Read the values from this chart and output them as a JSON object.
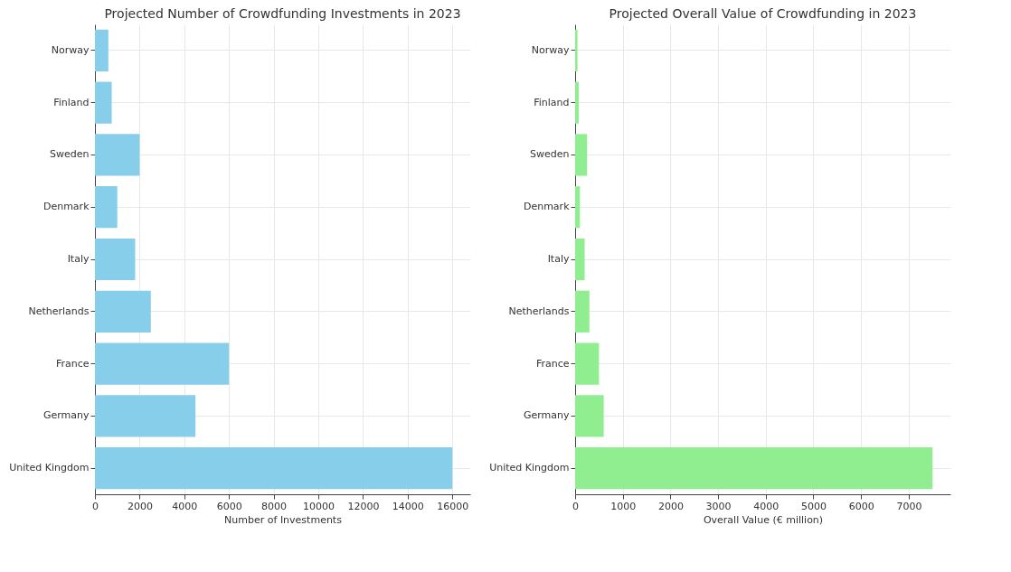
{
  "chart_data": [
    {
      "type": "bar",
      "orientation": "horizontal",
      "title": "Projected Number of Crowdfunding Investments in 2023",
      "xlabel": "Number of Investments",
      "categories": [
        "Norway",
        "Finland",
        "Sweden",
        "Denmark",
        "Italy",
        "Netherlands",
        "France",
        "Germany",
        "United Kingdom"
      ],
      "values": [
        600,
        750,
        2000,
        1000,
        1800,
        2500,
        6000,
        4500,
        16000
      ],
      "color": "#87ceeb",
      "xlim": [
        0,
        16800
      ],
      "xticks": [
        0,
        2000,
        4000,
        6000,
        8000,
        10000,
        12000,
        14000,
        16000
      ],
      "grid": true
    },
    {
      "type": "bar",
      "orientation": "horizontal",
      "title": "Projected Overall Value of Crowdfunding in 2023",
      "xlabel": "Overall Value (€ million)",
      "categories": [
        "Norway",
        "Finland",
        "Sweden",
        "Denmark",
        "Italy",
        "Netherlands",
        "France",
        "Germany",
        "United Kingdom"
      ],
      "values": [
        50,
        75,
        250,
        100,
        200,
        300,
        500,
        600,
        7500
      ],
      "color": "#90ee90",
      "xlim": [
        0,
        7875
      ],
      "xticks": [
        0,
        1000,
        2000,
        3000,
        4000,
        5000,
        6000,
        7000
      ],
      "grid": true
    }
  ]
}
